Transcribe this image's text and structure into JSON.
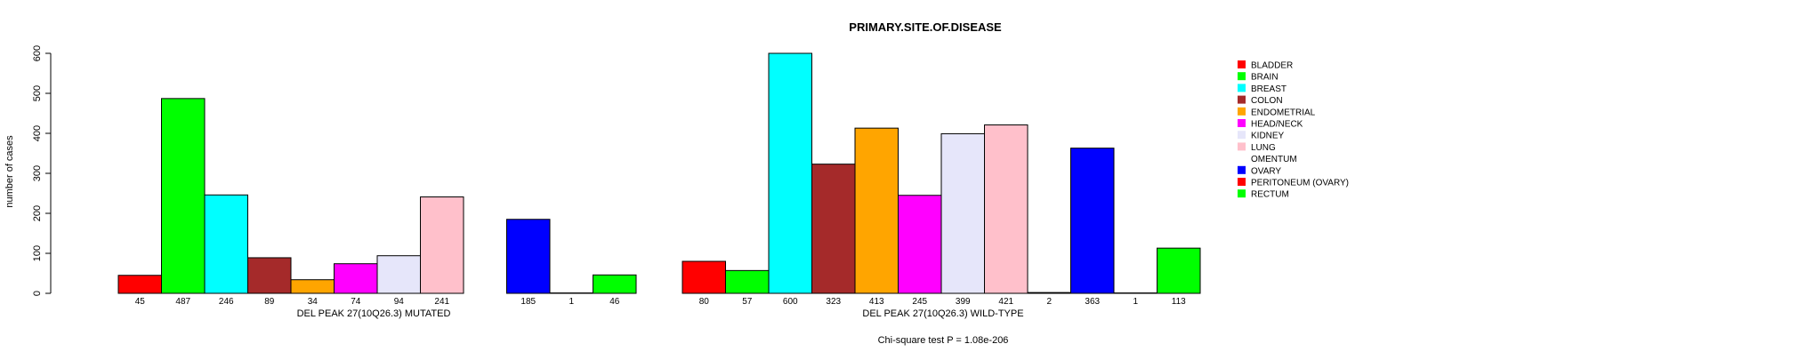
{
  "chart_data": {
    "type": "bar",
    "title": "PRIMARY.SITE.OF.DISEASE",
    "ylabel": "number of cases",
    "ylim": [
      0,
      600
    ],
    "yticks": [
      0,
      100,
      200,
      300,
      400,
      500,
      600
    ],
    "footnote": "Chi-square test P = 1.08e-206",
    "legend_position": "right",
    "categories": [
      "BLADDER",
      "BRAIN",
      "BREAST",
      "COLON",
      "ENDOMETRIAL",
      "HEAD/NECK",
      "KIDNEY",
      "LUNG",
      "OMENTUM",
      "OVARY",
      "PERITONEUM (OVARY)",
      "RECTUM"
    ],
    "colors": [
      "#ff0000",
      "#00ff00",
      "#00ffff",
      "#a52a2a",
      "#ffa500",
      "#ff00ff",
      "#e6e6fa",
      "#ffc0cb",
      "#ffffff",
      "#0000ff",
      "#ff0000",
      "#00ff00"
    ],
    "series": [
      {
        "name": "DEL PEAK 27(10Q26.3) MUTATED",
        "values": [
          45,
          487,
          246,
          89,
          34,
          74,
          94,
          241,
          0,
          185,
          1,
          46
        ],
        "labels": [
          "45",
          "487",
          "246",
          "89",
          "34",
          "74",
          "94",
          "241",
          "",
          "185",
          "1",
          "46"
        ]
      },
      {
        "name": "DEL PEAK 27(10Q26.3) WILD-TYPE",
        "values": [
          80,
          57,
          600,
          323,
          413,
          245,
          399,
          421,
          2,
          363,
          1,
          113
        ],
        "labels": [
          "80",
          "57",
          "600",
          "323",
          "413",
          "245",
          "399",
          "421",
          "2",
          "363",
          "1",
          "113"
        ]
      }
    ]
  }
}
